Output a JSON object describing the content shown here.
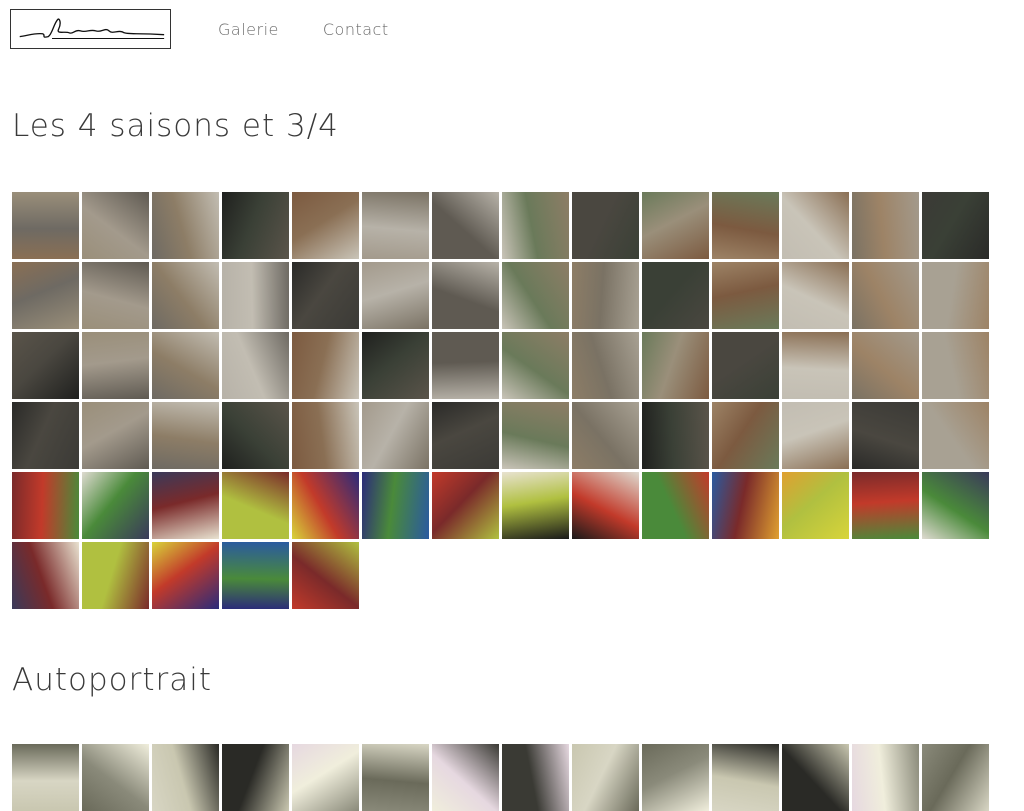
{
  "header": {
    "logo_alt": "signature logo",
    "nav": [
      {
        "label": "Galerie"
      },
      {
        "label": "Contact"
      }
    ]
  },
  "sections": [
    {
      "title": "Les 4 saisons et 3/4",
      "thumb_count": 75
    },
    {
      "title": "Autoportrait",
      "thumb_count": 14
    }
  ],
  "palette": {
    "gallery_rooms": [
      "#8a6f54",
      "#9a8f7a",
      "#6e6a63",
      "#b7b2a8",
      "#7c5a40",
      "#a39a8c",
      "#5f5a52",
      "#c9c4b8",
      "#8d7d66",
      "#6a7a5a",
      "#9d8366",
      "#c2bdb2",
      "#7a7264",
      "#a8a193"
    ],
    "dark_sculptures": [
      "#2a2a28",
      "#3b3a36",
      "#4a4740",
      "#1f201e",
      "#5a544a",
      "#3a4036"
    ],
    "abstract": [
      "#d8d43a",
      "#2b2b7a",
      "#c23a2a",
      "#e8e2d0",
      "#1a1a1a",
      "#4a8a3a",
      "#2a5aa0",
      "#e0a030",
      "#7a2a2a",
      "#dedad0",
      "#3a3a5a",
      "#b0c040"
    ],
    "autoportrait": [
      "#c9c7b0",
      "#6a6a5a",
      "#d8d6c4",
      "#2a2a26",
      "#e6d8e0",
      "#8a8a7a",
      "#f0eedc",
      "#3a3a34"
    ]
  }
}
